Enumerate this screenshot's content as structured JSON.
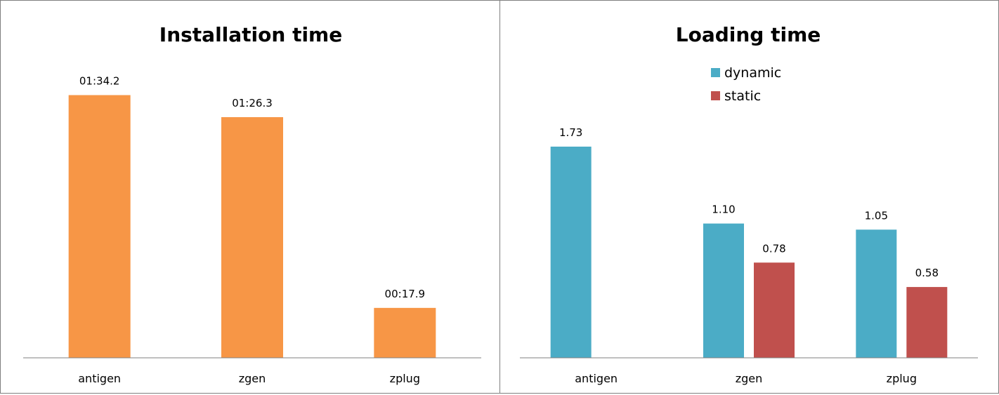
{
  "chart_data": [
    {
      "type": "bar",
      "title": "Installation time",
      "categories": [
        "antigen",
        "zgen",
        "zplug"
      ],
      "series": [
        {
          "values": [
            94.2,
            86.3,
            17.9
          ],
          "labels": [
            "01:34.2",
            "01:26.3",
            "00:17.9"
          ],
          "color": "#F79646"
        }
      ],
      "ylim": [
        0,
        120
      ],
      "grid": false,
      "legend": "none"
    },
    {
      "type": "bar",
      "title": "Loading time",
      "categories": [
        "antigen",
        "zgen",
        "zplug"
      ],
      "series": [
        {
          "name": "dynamic",
          "values": [
            1.73,
            1.1,
            1.05
          ],
          "labels": [
            "1.73",
            "1.10",
            "1.05"
          ],
          "color": "#4BACC6"
        },
        {
          "name": "static",
          "values": [
            null,
            0.78,
            0.58
          ],
          "labels": [
            null,
            "0.78",
            "0.58"
          ],
          "color": "#C0504D"
        }
      ],
      "ylim": [
        0,
        2.0
      ],
      "grid": false,
      "legend": "top-center"
    }
  ]
}
